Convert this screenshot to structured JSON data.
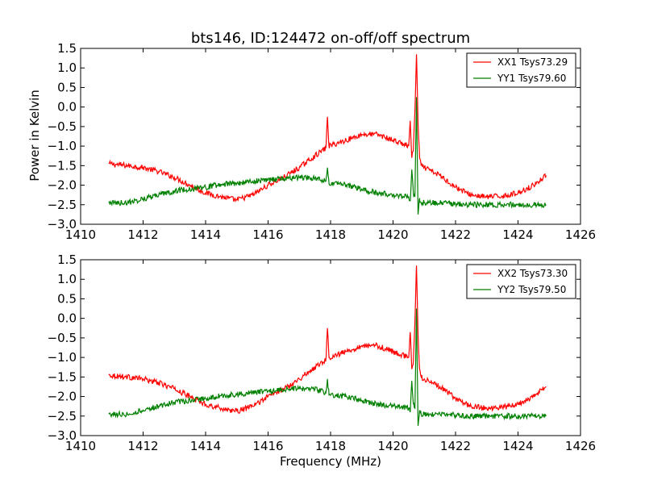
{
  "chart_data": [
    {
      "type": "line",
      "title": "bts146, ID:124472 on-off/off spectrum",
      "xlabel": "",
      "ylabel": "Power in Kelvin",
      "xlim": [
        1410,
        1426
      ],
      "ylim": [
        -3.0,
        1.5
      ],
      "xticks": [
        "1410",
        "1412",
        "1414",
        "1416",
        "1418",
        "1420",
        "1422",
        "1424",
        "1426"
      ],
      "yticks": [
        "1.5",
        "1.0",
        "0.5",
        "0.0",
        "−0.5",
        "−1.0",
        "−1.5",
        "−2.0",
        "−2.5",
        "−3.0"
      ],
      "legend_position": "top-right",
      "series": [
        {
          "name": "XX1 Tsys73.29",
          "color": "#ff0000",
          "x": [
            1410.9,
            1411.5,
            1412.0,
            1412.5,
            1413.0,
            1413.5,
            1414.0,
            1414.5,
            1415.0,
            1415.5,
            1416.0,
            1416.5,
            1417.0,
            1417.5,
            1417.85,
            1417.9,
            1417.95,
            1418.5,
            1419.0,
            1419.5,
            1420.0,
            1420.5,
            1420.55,
            1420.6,
            1420.65,
            1420.7,
            1420.75,
            1420.8,
            1420.85,
            1420.9,
            1421.0,
            1421.5,
            1422.0,
            1422.5,
            1423.0,
            1423.5,
            1424.0,
            1424.5,
            1424.9
          ],
          "y": [
            -1.45,
            -1.5,
            -1.55,
            -1.65,
            -1.8,
            -2.0,
            -2.2,
            -2.3,
            -2.38,
            -2.25,
            -2.0,
            -1.8,
            -1.55,
            -1.25,
            -1.05,
            -0.25,
            -1.0,
            -0.85,
            -0.7,
            -0.7,
            -0.85,
            -1.0,
            -0.35,
            -1.3,
            -1.1,
            -0.1,
            1.35,
            -0.4,
            -1.3,
            -1.5,
            -1.55,
            -1.75,
            -2.05,
            -2.25,
            -2.3,
            -2.28,
            -2.2,
            -2.0,
            -1.75
          ]
        },
        {
          "name": "YY1 Tsys79.60",
          "color": "#008000",
          "x": [
            1410.9,
            1411.5,
            1412.0,
            1412.5,
            1413.0,
            1413.5,
            1414.0,
            1414.5,
            1415.0,
            1415.5,
            1416.0,
            1416.5,
            1417.0,
            1417.5,
            1417.85,
            1417.9,
            1417.95,
            1418.5,
            1419.0,
            1419.5,
            1420.0,
            1420.5,
            1420.55,
            1420.6,
            1420.65,
            1420.7,
            1420.75,
            1420.8,
            1420.85,
            1420.9,
            1421.0,
            1421.5,
            1422.0,
            1422.5,
            1423.0,
            1423.5,
            1424.0,
            1424.5,
            1424.9
          ],
          "y": [
            -2.45,
            -2.45,
            -2.35,
            -2.25,
            -2.15,
            -2.1,
            -2.05,
            -1.98,
            -1.95,
            -1.9,
            -1.87,
            -1.82,
            -1.8,
            -1.82,
            -1.9,
            -1.55,
            -1.95,
            -2.0,
            -2.1,
            -2.2,
            -2.25,
            -2.3,
            -2.4,
            -1.6,
            -2.2,
            -2.3,
            0.25,
            -2.75,
            -2.35,
            -2.45,
            -2.45,
            -2.45,
            -2.48,
            -2.5,
            -2.5,
            -2.5,
            -2.5,
            -2.5,
            -2.5
          ]
        }
      ]
    },
    {
      "type": "line",
      "title": "",
      "xlabel": "Frequency (MHz)",
      "ylabel": "",
      "xlim": [
        1410,
        1426
      ],
      "ylim": [
        -3.0,
        1.5
      ],
      "xticks": [
        "1410",
        "1412",
        "1414",
        "1416",
        "1418",
        "1420",
        "1422",
        "1424",
        "1426"
      ],
      "yticks": [
        "1.5",
        "1.0",
        "0.5",
        "0.0",
        "−0.5",
        "−1.0",
        "−1.5",
        "−2.0",
        "−2.5",
        "−3.0"
      ],
      "legend_position": "top-right",
      "series": [
        {
          "name": "XX2 Tsys73.30",
          "color": "#ff0000",
          "x": [
            1410.9,
            1411.5,
            1412.0,
            1412.5,
            1413.0,
            1413.5,
            1414.0,
            1414.5,
            1415.0,
            1415.5,
            1416.0,
            1416.5,
            1417.0,
            1417.5,
            1417.85,
            1417.9,
            1417.95,
            1418.5,
            1419.0,
            1419.5,
            1420.0,
            1420.5,
            1420.55,
            1420.6,
            1420.65,
            1420.7,
            1420.75,
            1420.8,
            1420.85,
            1420.9,
            1421.0,
            1421.5,
            1422.0,
            1422.5,
            1423.0,
            1423.5,
            1424.0,
            1424.5,
            1424.9
          ],
          "y": [
            -1.45,
            -1.5,
            -1.55,
            -1.65,
            -1.8,
            -2.0,
            -2.2,
            -2.3,
            -2.38,
            -2.25,
            -2.0,
            -1.8,
            -1.55,
            -1.25,
            -1.05,
            -0.25,
            -1.0,
            -0.85,
            -0.7,
            -0.7,
            -0.85,
            -1.0,
            -0.35,
            -1.3,
            -1.1,
            -0.1,
            1.35,
            -0.4,
            -1.3,
            -1.5,
            -1.55,
            -1.75,
            -2.05,
            -2.25,
            -2.3,
            -2.28,
            -2.2,
            -2.0,
            -1.75
          ]
        },
        {
          "name": "YY2 Tsys79.50",
          "color": "#008000",
          "x": [
            1410.9,
            1411.5,
            1412.0,
            1412.5,
            1413.0,
            1413.5,
            1414.0,
            1414.5,
            1415.0,
            1415.5,
            1416.0,
            1416.5,
            1417.0,
            1417.5,
            1417.85,
            1417.9,
            1417.95,
            1418.5,
            1419.0,
            1419.5,
            1420.0,
            1420.5,
            1420.55,
            1420.6,
            1420.65,
            1420.7,
            1420.75,
            1420.8,
            1420.85,
            1420.9,
            1421.0,
            1421.5,
            1422.0,
            1422.5,
            1423.0,
            1423.5,
            1424.0,
            1424.5,
            1424.9
          ],
          "y": [
            -2.45,
            -2.45,
            -2.35,
            -2.25,
            -2.15,
            -2.1,
            -2.05,
            -1.98,
            -1.95,
            -1.9,
            -1.87,
            -1.82,
            -1.8,
            -1.82,
            -1.9,
            -1.55,
            -1.95,
            -2.0,
            -2.1,
            -2.2,
            -2.25,
            -2.3,
            -2.4,
            -1.6,
            -2.2,
            -2.3,
            0.25,
            -2.75,
            -2.35,
            -2.45,
            -2.45,
            -2.45,
            -2.48,
            -2.5,
            -2.5,
            -2.5,
            -2.5,
            -2.5,
            -2.5
          ]
        }
      ]
    }
  ]
}
